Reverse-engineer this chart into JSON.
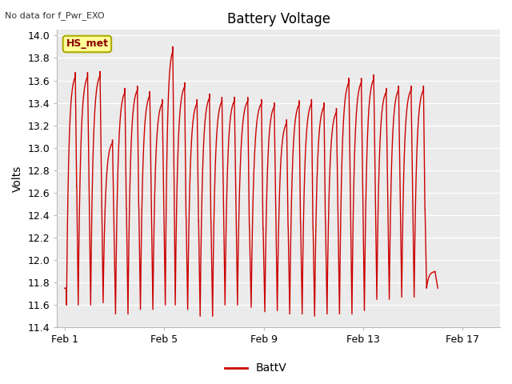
{
  "title": "Battery Voltage",
  "ylabel": "Volts",
  "top_left_text": "No data for f_Pwr_EXO",
  "legend_label": "BattV",
  "line_color": "#cc0000",
  "ylim": [
    11.4,
    14.05
  ],
  "yticks": [
    11.4,
    11.6,
    11.8,
    12.0,
    12.2,
    12.4,
    12.6,
    12.8,
    13.0,
    13.2,
    13.4,
    13.6,
    13.8,
    14.0
  ],
  "xtick_labels": [
    "Feb 1",
    "Feb 5",
    "Feb 9",
    "Feb 13",
    "Feb 17"
  ],
  "xtick_positions": [
    0,
    4,
    8,
    12,
    16
  ],
  "xlim": [
    -0.3,
    17.5
  ],
  "plot_bg_color": "#ebebeb",
  "grid_color": "#ffffff",
  "legend_box_facecolor": "#ffff99",
  "legend_box_edgecolor": "#aaaa00",
  "fig_width": 6.4,
  "fig_height": 4.8,
  "dpi": 100,
  "cycles": [
    {
      "ts": 0.0,
      "te": 0.08,
      "start_v": 11.75,
      "peak": 11.75,
      "mid": null,
      "trough": 11.6
    },
    {
      "ts": 0.08,
      "te": 0.55,
      "start_v": 11.6,
      "peak": 13.67,
      "mid": 12.65,
      "trough": 11.6
    },
    {
      "ts": 0.55,
      "te": 1.05,
      "start_v": 11.6,
      "peak": 13.67,
      "mid": null,
      "trough": 11.6
    },
    {
      "ts": 1.05,
      "te": 1.55,
      "start_v": 11.6,
      "peak": 13.68,
      "mid": null,
      "trough": 11.62
    },
    {
      "ts": 1.55,
      "te": 2.05,
      "start_v": 11.62,
      "peak": 13.07,
      "mid": null,
      "trough": 11.52
    },
    {
      "ts": 2.05,
      "te": 2.55,
      "start_v": 11.52,
      "peak": 13.53,
      "mid": 12.46,
      "trough": 11.52
    },
    {
      "ts": 2.55,
      "te": 3.05,
      "start_v": 11.52,
      "peak": 13.55,
      "mid": 12.47,
      "trough": 11.56
    },
    {
      "ts": 3.05,
      "te": 3.55,
      "start_v": 11.56,
      "peak": 13.5,
      "mid": null,
      "trough": 11.56
    },
    {
      "ts": 3.55,
      "te": 4.05,
      "start_v": 11.56,
      "peak": 13.43,
      "mid": null,
      "trough": 11.6
    },
    {
      "ts": 4.05,
      "te": 4.45,
      "start_v": 11.6,
      "peak": 13.9,
      "mid": null,
      "trough": 11.6
    },
    {
      "ts": 4.45,
      "te": 4.95,
      "start_v": 11.6,
      "peak": 13.58,
      "mid": 12.38,
      "trough": 11.56
    },
    {
      "ts": 4.95,
      "te": 5.45,
      "start_v": 11.56,
      "peak": 13.43,
      "mid": 12.35,
      "trough": 11.5
    },
    {
      "ts": 5.45,
      "te": 5.95,
      "start_v": 11.5,
      "peak": 13.48,
      "mid": 12.34,
      "trough": 11.5
    },
    {
      "ts": 5.95,
      "te": 6.45,
      "start_v": 11.5,
      "peak": 13.45,
      "mid": null,
      "trough": 11.6
    },
    {
      "ts": 6.45,
      "te": 6.95,
      "start_v": 11.6,
      "peak": 13.45,
      "mid": null,
      "trough": 11.6
    },
    {
      "ts": 6.95,
      "te": 7.5,
      "start_v": 11.6,
      "peak": 13.45,
      "mid": 12.3,
      "trough": 11.58
    },
    {
      "ts": 7.5,
      "te": 8.05,
      "start_v": 11.58,
      "peak": 13.43,
      "mid": 12.28,
      "trough": 11.54
    },
    {
      "ts": 8.05,
      "te": 8.55,
      "start_v": 11.54,
      "peak": 13.4,
      "mid": null,
      "trough": 11.55
    },
    {
      "ts": 8.55,
      "te": 9.05,
      "start_v": 11.55,
      "peak": 13.25,
      "mid": 12.3,
      "trough": 11.52
    },
    {
      "ts": 9.05,
      "te": 9.55,
      "start_v": 11.52,
      "peak": 13.42,
      "mid": 12.33,
      "trough": 11.52
    },
    {
      "ts": 9.55,
      "te": 10.05,
      "start_v": 11.52,
      "peak": 13.43,
      "mid": 12.29,
      "trough": 11.5
    },
    {
      "ts": 10.05,
      "te": 10.55,
      "start_v": 11.5,
      "peak": 13.4,
      "mid": 12.34,
      "trough": 11.52
    },
    {
      "ts": 10.55,
      "te": 11.05,
      "start_v": 11.52,
      "peak": 13.35,
      "mid": null,
      "trough": 11.52
    },
    {
      "ts": 11.05,
      "te": 11.55,
      "start_v": 11.52,
      "peak": 13.62,
      "mid": null,
      "trough": 11.52
    },
    {
      "ts": 11.55,
      "te": 12.05,
      "start_v": 11.52,
      "peak": 13.62,
      "mid": null,
      "trough": 11.55
    },
    {
      "ts": 12.05,
      "te": 12.55,
      "start_v": 11.55,
      "peak": 13.65,
      "mid": null,
      "trough": 11.65
    },
    {
      "ts": 12.55,
      "te": 13.05,
      "start_v": 11.65,
      "peak": 13.53,
      "mid": null,
      "trough": 11.65
    },
    {
      "ts": 13.05,
      "te": 13.55,
      "start_v": 11.65,
      "peak": 13.55,
      "mid": null,
      "trough": 11.67
    },
    {
      "ts": 13.55,
      "te": 14.05,
      "start_v": 11.67,
      "peak": 13.55,
      "mid": null,
      "trough": 11.67
    },
    {
      "ts": 14.05,
      "te": 14.55,
      "start_v": 11.67,
      "peak": 13.55,
      "mid": 12.45,
      "trough": 11.75
    },
    {
      "ts": 14.55,
      "te": 15.0,
      "start_v": 11.75,
      "peak": 11.9,
      "mid": null,
      "trough": 11.75
    }
  ]
}
